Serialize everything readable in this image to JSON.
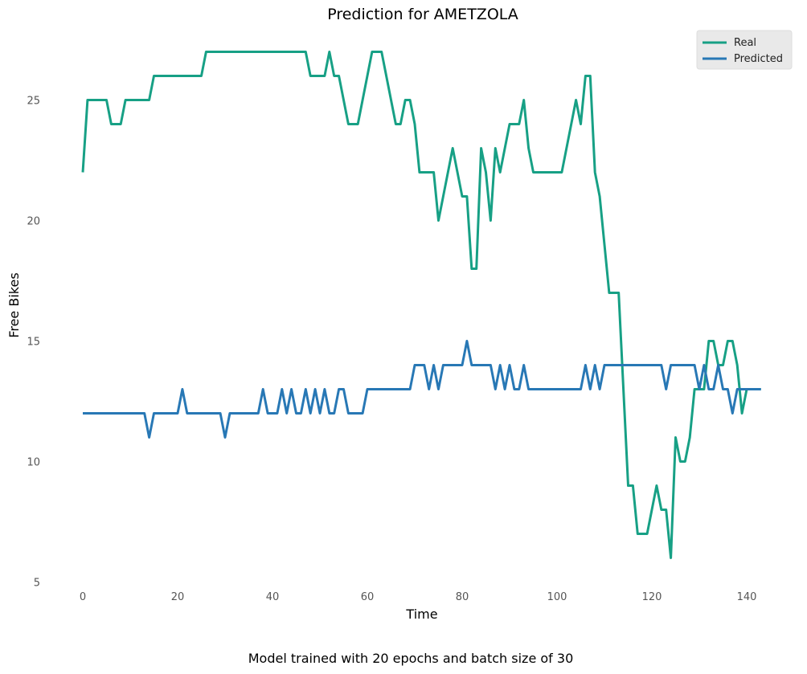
{
  "chart_data": {
    "type": "line",
    "title": "Prediction for AMETZOLA",
    "xlabel": "Time",
    "ylabel": "Free Bikes",
    "caption": "Model trained with 20 epochs and batch size of 30",
    "xlim": [
      0,
      143
    ],
    "ylim": [
      5,
      27
    ],
    "xticks": [
      0,
      20,
      40,
      60,
      80,
      100,
      120,
      140
    ],
    "yticks": [
      5,
      10,
      15,
      20,
      25
    ],
    "grid": false,
    "legend_position": "top-right",
    "series": [
      {
        "name": "Real",
        "color": "#17a085",
        "values": [
          22,
          25,
          25,
          25,
          25,
          25,
          24,
          24,
          24,
          25,
          25,
          25,
          25,
          25,
          25,
          26,
          26,
          26,
          26,
          26,
          26,
          26,
          26,
          26,
          26,
          26,
          27,
          27,
          27,
          27,
          27,
          27,
          27,
          27,
          27,
          27,
          27,
          27,
          27,
          27,
          27,
          27,
          27,
          27,
          27,
          27,
          27,
          27,
          26,
          26,
          26,
          26,
          27,
          26,
          26,
          25,
          24,
          24,
          24,
          25,
          26,
          27,
          27,
          27,
          26,
          25,
          24,
          24,
          25,
          25,
          24,
          22,
          22,
          22,
          22,
          20,
          21,
          22,
          23,
          22,
          21,
          21,
          18,
          18,
          23,
          22,
          20,
          23,
          22,
          23,
          24,
          24,
          24,
          25,
          23,
          22,
          22,
          22,
          22,
          22,
          22,
          22,
          23,
          24,
          25,
          24,
          26,
          26,
          22,
          21,
          19,
          17,
          17,
          17,
          13,
          9,
          9,
          7,
          7,
          7,
          8,
          9,
          8,
          8,
          6,
          11,
          10,
          10,
          11,
          13,
          13,
          13,
          15,
          15,
          14,
          14,
          15,
          15,
          14,
          12,
          13,
          13,
          13,
          13
        ]
      },
      {
        "name": "Predicted",
        "color": "#2878b5",
        "values": [
          12,
          12,
          12,
          12,
          12,
          12,
          12,
          12,
          12,
          12,
          12,
          12,
          12,
          12,
          11,
          12,
          12,
          12,
          12,
          12,
          12,
          13,
          12,
          12,
          12,
          12,
          12,
          12,
          12,
          12,
          11,
          12,
          12,
          12,
          12,
          12,
          12,
          12,
          13,
          12,
          12,
          12,
          13,
          12,
          13,
          12,
          12,
          13,
          12,
          13,
          12,
          13,
          12,
          12,
          13,
          13,
          12,
          12,
          12,
          12,
          13,
          13,
          13,
          13,
          13,
          13,
          13,
          13,
          13,
          13,
          14,
          14,
          14,
          13,
          14,
          13,
          14,
          14,
          14,
          14,
          14,
          15,
          14,
          14,
          14,
          14,
          14,
          13,
          14,
          13,
          14,
          13,
          13,
          14,
          13,
          13,
          13,
          13,
          13,
          13,
          13,
          13,
          13,
          13,
          13,
          13,
          14,
          13,
          14,
          13,
          14,
          14,
          14,
          14,
          14,
          14,
          14,
          14,
          14,
          14,
          14,
          14,
          14,
          13,
          14,
          14,
          14,
          14,
          14,
          14,
          13,
          14,
          13,
          13,
          14,
          13,
          13,
          12,
          13,
          13,
          13,
          13,
          13,
          13
        ]
      }
    ]
  }
}
